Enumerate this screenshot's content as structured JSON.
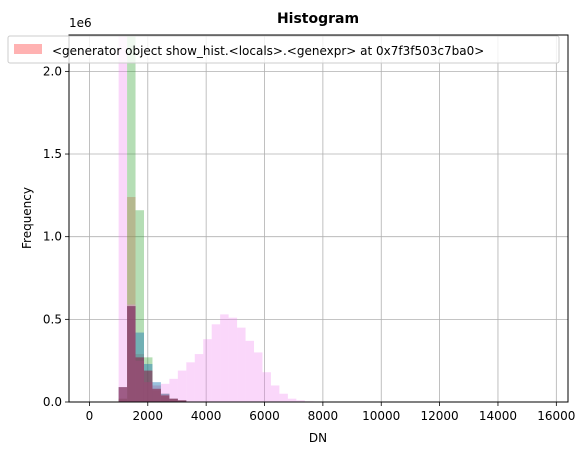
{
  "chart_data": {
    "type": "bar",
    "title": "Histogram",
    "xlabel": "DN",
    "ylabel": "Frequency",
    "y_multiplier": "1e6",
    "xlim": [
      -700,
      16400
    ],
    "ylim": [
      0,
      2.22
    ],
    "xticks": [
      0,
      2000,
      4000,
      6000,
      8000,
      10000,
      12000,
      14000,
      16000
    ],
    "xtick_labels": [
      "0",
      "2000",
      "4000",
      "6000",
      "8000",
      "10000",
      "12000",
      "14000",
      "16000"
    ],
    "yticks": [
      0.0,
      0.5,
      1.0,
      1.5,
      2.0
    ],
    "ytick_labels": [
      "0.0",
      "0.5",
      "1.0",
      "1.5",
      "2.0"
    ],
    "grid": true,
    "legend": {
      "position": "top",
      "entries": [
        "<generator object show_hist.<locals>.<genexpr> at 0x7f3f503c7ba0>"
      ]
    },
    "bin_width": 290,
    "series": [
      {
        "color": "#ff7f7f",
        "opacity": 0.45,
        "bins": [
          [
            1000,
            0.02
          ],
          [
            1290,
            1.24
          ],
          [
            1580,
            0.29
          ],
          [
            1870,
            0.12
          ],
          [
            2160,
            0.07
          ],
          [
            2450,
            0.05
          ],
          [
            2740,
            0.02
          ],
          [
            3030,
            0.01
          ]
        ]
      },
      {
        "color": "#2ca02c",
        "opacity": 0.35,
        "bins": [
          [
            1000,
            0.02
          ],
          [
            1290,
            2.21
          ],
          [
            1580,
            1.16
          ],
          [
            1870,
            0.27
          ],
          [
            2160,
            0.1
          ],
          [
            2450,
            0.05
          ],
          [
            2740,
            0.02
          ],
          [
            3030,
            0.01
          ]
        ]
      },
      {
        "color": "#1f77b4",
        "opacity": 0.45,
        "bins": [
          [
            1000,
            0.09
          ],
          [
            1290,
            0.58
          ],
          [
            1580,
            0.42
          ],
          [
            1870,
            0.23
          ],
          [
            2160,
            0.12
          ],
          [
            2450,
            0.05
          ],
          [
            2740,
            0.02
          ],
          [
            3030,
            0.01
          ]
        ]
      },
      {
        "color": "#ee82ee",
        "opacity": 0.32,
        "bins": [
          [
            1000,
            2.22
          ],
          [
            1290,
            0.59
          ],
          [
            1580,
            0.25
          ],
          [
            1870,
            0.12
          ],
          [
            2160,
            0.1
          ],
          [
            2450,
            0.11
          ],
          [
            2740,
            0.14
          ],
          [
            3030,
            0.19
          ],
          [
            3320,
            0.24
          ],
          [
            3610,
            0.29
          ],
          [
            3900,
            0.38
          ],
          [
            4190,
            0.47
          ],
          [
            4480,
            0.53
          ],
          [
            4770,
            0.51
          ],
          [
            5060,
            0.45
          ],
          [
            5350,
            0.37
          ],
          [
            5640,
            0.3
          ],
          [
            5930,
            0.18
          ],
          [
            6220,
            0.1
          ],
          [
            6510,
            0.05
          ],
          [
            6800,
            0.02
          ],
          [
            7090,
            0.01
          ],
          [
            7380,
            0.004
          ]
        ]
      },
      {
        "color": "#8b1a3a",
        "opacity": 0.55,
        "bins": [
          [
            1000,
            0.09
          ],
          [
            1290,
            0.58
          ],
          [
            1580,
            0.27
          ],
          [
            1870,
            0.19
          ],
          [
            2160,
            0.08
          ],
          [
            2450,
            0.04
          ],
          [
            2740,
            0.02
          ],
          [
            3030,
            0.01
          ]
        ]
      }
    ]
  }
}
